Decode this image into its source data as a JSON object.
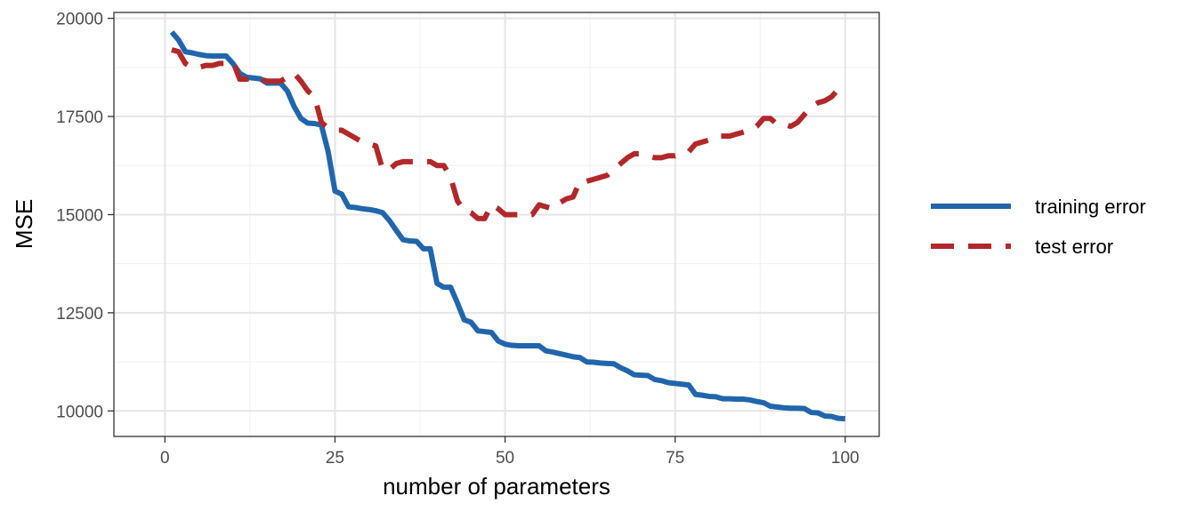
{
  "chart_data": {
    "type": "line",
    "xlabel": "number of parameters",
    "ylabel": "MSE",
    "xlim": [
      -7.5,
      105
    ],
    "ylim": [
      9350,
      20150
    ],
    "x_ticks": [
      0,
      25,
      50,
      75,
      100
    ],
    "x_tick_labels": [
      "0",
      "25",
      "50",
      "75",
      "100"
    ],
    "y_ticks": [
      10000,
      12500,
      15000,
      17500,
      20000
    ],
    "y_tick_labels": [
      "10000",
      "12500",
      "15000",
      "17500",
      "20000"
    ],
    "grid": true,
    "legend_position": "right",
    "series": [
      {
        "name": "training error",
        "color": "#2166AC",
        "dash": "solid",
        "points": [
          [
            1,
            19650
          ],
          [
            2,
            19450
          ],
          [
            3,
            19150
          ],
          [
            4,
            19120
          ],
          [
            5,
            19080
          ],
          [
            6,
            19050
          ],
          [
            7,
            19040
          ],
          [
            8,
            19040
          ],
          [
            9,
            19040
          ],
          [
            10,
            18850
          ],
          [
            11,
            18600
          ],
          [
            12,
            18500
          ],
          [
            13,
            18480
          ],
          [
            14,
            18460
          ],
          [
            15,
            18350
          ],
          [
            16,
            18350
          ],
          [
            17,
            18350
          ],
          [
            18,
            18150
          ],
          [
            19,
            17750
          ],
          [
            20,
            17450
          ],
          [
            21,
            17330
          ],
          [
            22,
            17320
          ],
          [
            23,
            17280
          ],
          [
            24,
            16600
          ],
          [
            25,
            15600
          ],
          [
            26,
            15520
          ],
          [
            27,
            15200
          ],
          [
            28,
            15180
          ],
          [
            29,
            15150
          ],
          [
            30,
            15130
          ],
          [
            31,
            15100
          ],
          [
            32,
            15050
          ],
          [
            33,
            14850
          ],
          [
            34,
            14600
          ],
          [
            35,
            14360
          ],
          [
            36,
            14330
          ],
          [
            37,
            14320
          ],
          [
            38,
            14130
          ],
          [
            39,
            14130
          ],
          [
            40,
            13250
          ],
          [
            41,
            13150
          ],
          [
            42,
            13150
          ],
          [
            43,
            12750
          ],
          [
            44,
            12320
          ],
          [
            45,
            12260
          ],
          [
            46,
            12040
          ],
          [
            47,
            12020
          ],
          [
            48,
            12000
          ],
          [
            49,
            11780
          ],
          [
            50,
            11700
          ],
          [
            51,
            11670
          ],
          [
            52,
            11660
          ],
          [
            53,
            11660
          ],
          [
            54,
            11660
          ],
          [
            55,
            11660
          ],
          [
            56,
            11530
          ],
          [
            57,
            11500
          ],
          [
            58,
            11460
          ],
          [
            59,
            11420
          ],
          [
            60,
            11380
          ],
          [
            61,
            11360
          ],
          [
            62,
            11250
          ],
          [
            63,
            11240
          ],
          [
            64,
            11220
          ],
          [
            65,
            11210
          ],
          [
            66,
            11200
          ],
          [
            67,
            11100
          ],
          [
            68,
            11020
          ],
          [
            69,
            10920
          ],
          [
            70,
            10910
          ],
          [
            71,
            10900
          ],
          [
            72,
            10800
          ],
          [
            73,
            10770
          ],
          [
            74,
            10720
          ],
          [
            75,
            10700
          ],
          [
            76,
            10680
          ],
          [
            77,
            10660
          ],
          [
            78,
            10420
          ],
          [
            79,
            10400
          ],
          [
            80,
            10370
          ],
          [
            81,
            10360
          ],
          [
            82,
            10310
          ],
          [
            83,
            10310
          ],
          [
            84,
            10300
          ],
          [
            85,
            10300
          ],
          [
            86,
            10280
          ],
          [
            87,
            10240
          ],
          [
            88,
            10210
          ],
          [
            89,
            10120
          ],
          [
            90,
            10100
          ],
          [
            91,
            10080
          ],
          [
            92,
            10070
          ],
          [
            93,
            10070
          ],
          [
            94,
            10060
          ],
          [
            95,
            9960
          ],
          [
            96,
            9950
          ],
          [
            97,
            9870
          ],
          [
            98,
            9860
          ],
          [
            99,
            9810
          ],
          [
            100,
            9800
          ]
        ]
      },
      {
        "name": "test error",
        "color": "#B2282A",
        "dash": "dashed",
        "points": [
          [
            1,
            19200
          ],
          [
            2,
            19150
          ],
          [
            3,
            18850
          ],
          [
            4,
            18750
          ],
          [
            5,
            18750
          ],
          [
            6,
            18800
          ],
          [
            7,
            18800
          ],
          [
            8,
            18850
          ],
          [
            9,
            18850
          ],
          [
            10,
            18900
          ],
          [
            11,
            18450
          ],
          [
            12,
            18450
          ],
          [
            13,
            18500
          ],
          [
            14,
            18450
          ],
          [
            15,
            18400
          ],
          [
            16,
            18400
          ],
          [
            17,
            18400
          ],
          [
            18,
            18500
          ],
          [
            19,
            18600
          ],
          [
            20,
            18400
          ],
          [
            21,
            18150
          ],
          [
            22,
            18000
          ],
          [
            23,
            17350
          ],
          [
            24,
            17200
          ],
          [
            25,
            17150
          ],
          [
            26,
            17150
          ],
          [
            27,
            17050
          ],
          [
            28,
            16950
          ],
          [
            29,
            16850
          ],
          [
            30,
            16800
          ],
          [
            31,
            16750
          ],
          [
            32,
            16150
          ],
          [
            33,
            16150
          ],
          [
            34,
            16300
          ],
          [
            35,
            16350
          ],
          [
            36,
            16350
          ],
          [
            37,
            16350
          ],
          [
            38,
            16350
          ],
          [
            39,
            16350
          ],
          [
            40,
            16250
          ],
          [
            41,
            16250
          ],
          [
            42,
            15950
          ],
          [
            43,
            15350
          ],
          [
            44,
            15100
          ],
          [
            45,
            15050
          ],
          [
            46,
            14900
          ],
          [
            47,
            14900
          ],
          [
            48,
            15250
          ],
          [
            49,
            15150
          ],
          [
            50,
            15000
          ],
          [
            51,
            15000
          ],
          [
            52,
            15000
          ],
          [
            53,
            15000
          ],
          [
            54,
            15000
          ],
          [
            55,
            15250
          ],
          [
            56,
            15200
          ],
          [
            57,
            15150
          ],
          [
            58,
            15300
          ],
          [
            59,
            15400
          ],
          [
            60,
            15450
          ],
          [
            61,
            15850
          ],
          [
            62,
            15850
          ],
          [
            63,
            15900
          ],
          [
            64,
            15950
          ],
          [
            65,
            16000
          ],
          [
            66,
            16150
          ],
          [
            67,
            16300
          ],
          [
            68,
            16450
          ],
          [
            69,
            16550
          ],
          [
            70,
            16550
          ],
          [
            71,
            16500
          ],
          [
            72,
            16450
          ],
          [
            73,
            16450
          ],
          [
            74,
            16500
          ],
          [
            75,
            16500
          ],
          [
            76,
            16550
          ],
          [
            77,
            16600
          ],
          [
            78,
            16800
          ],
          [
            79,
            16850
          ],
          [
            80,
            16900
          ],
          [
            81,
            17000
          ],
          [
            82,
            17000
          ],
          [
            83,
            17000
          ],
          [
            84,
            17050
          ],
          [
            85,
            17100
          ],
          [
            86,
            17150
          ],
          [
            87,
            17250
          ],
          [
            88,
            17450
          ],
          [
            89,
            17450
          ],
          [
            90,
            17300
          ],
          [
            91,
            17300
          ],
          [
            92,
            17250
          ],
          [
            93,
            17350
          ],
          [
            94,
            17550
          ],
          [
            95,
            17750
          ],
          [
            96,
            17850
          ],
          [
            97,
            17900
          ],
          [
            98,
            18000
          ],
          [
            99,
            18200
          ],
          [
            100,
            18200
          ]
        ]
      }
    ]
  }
}
